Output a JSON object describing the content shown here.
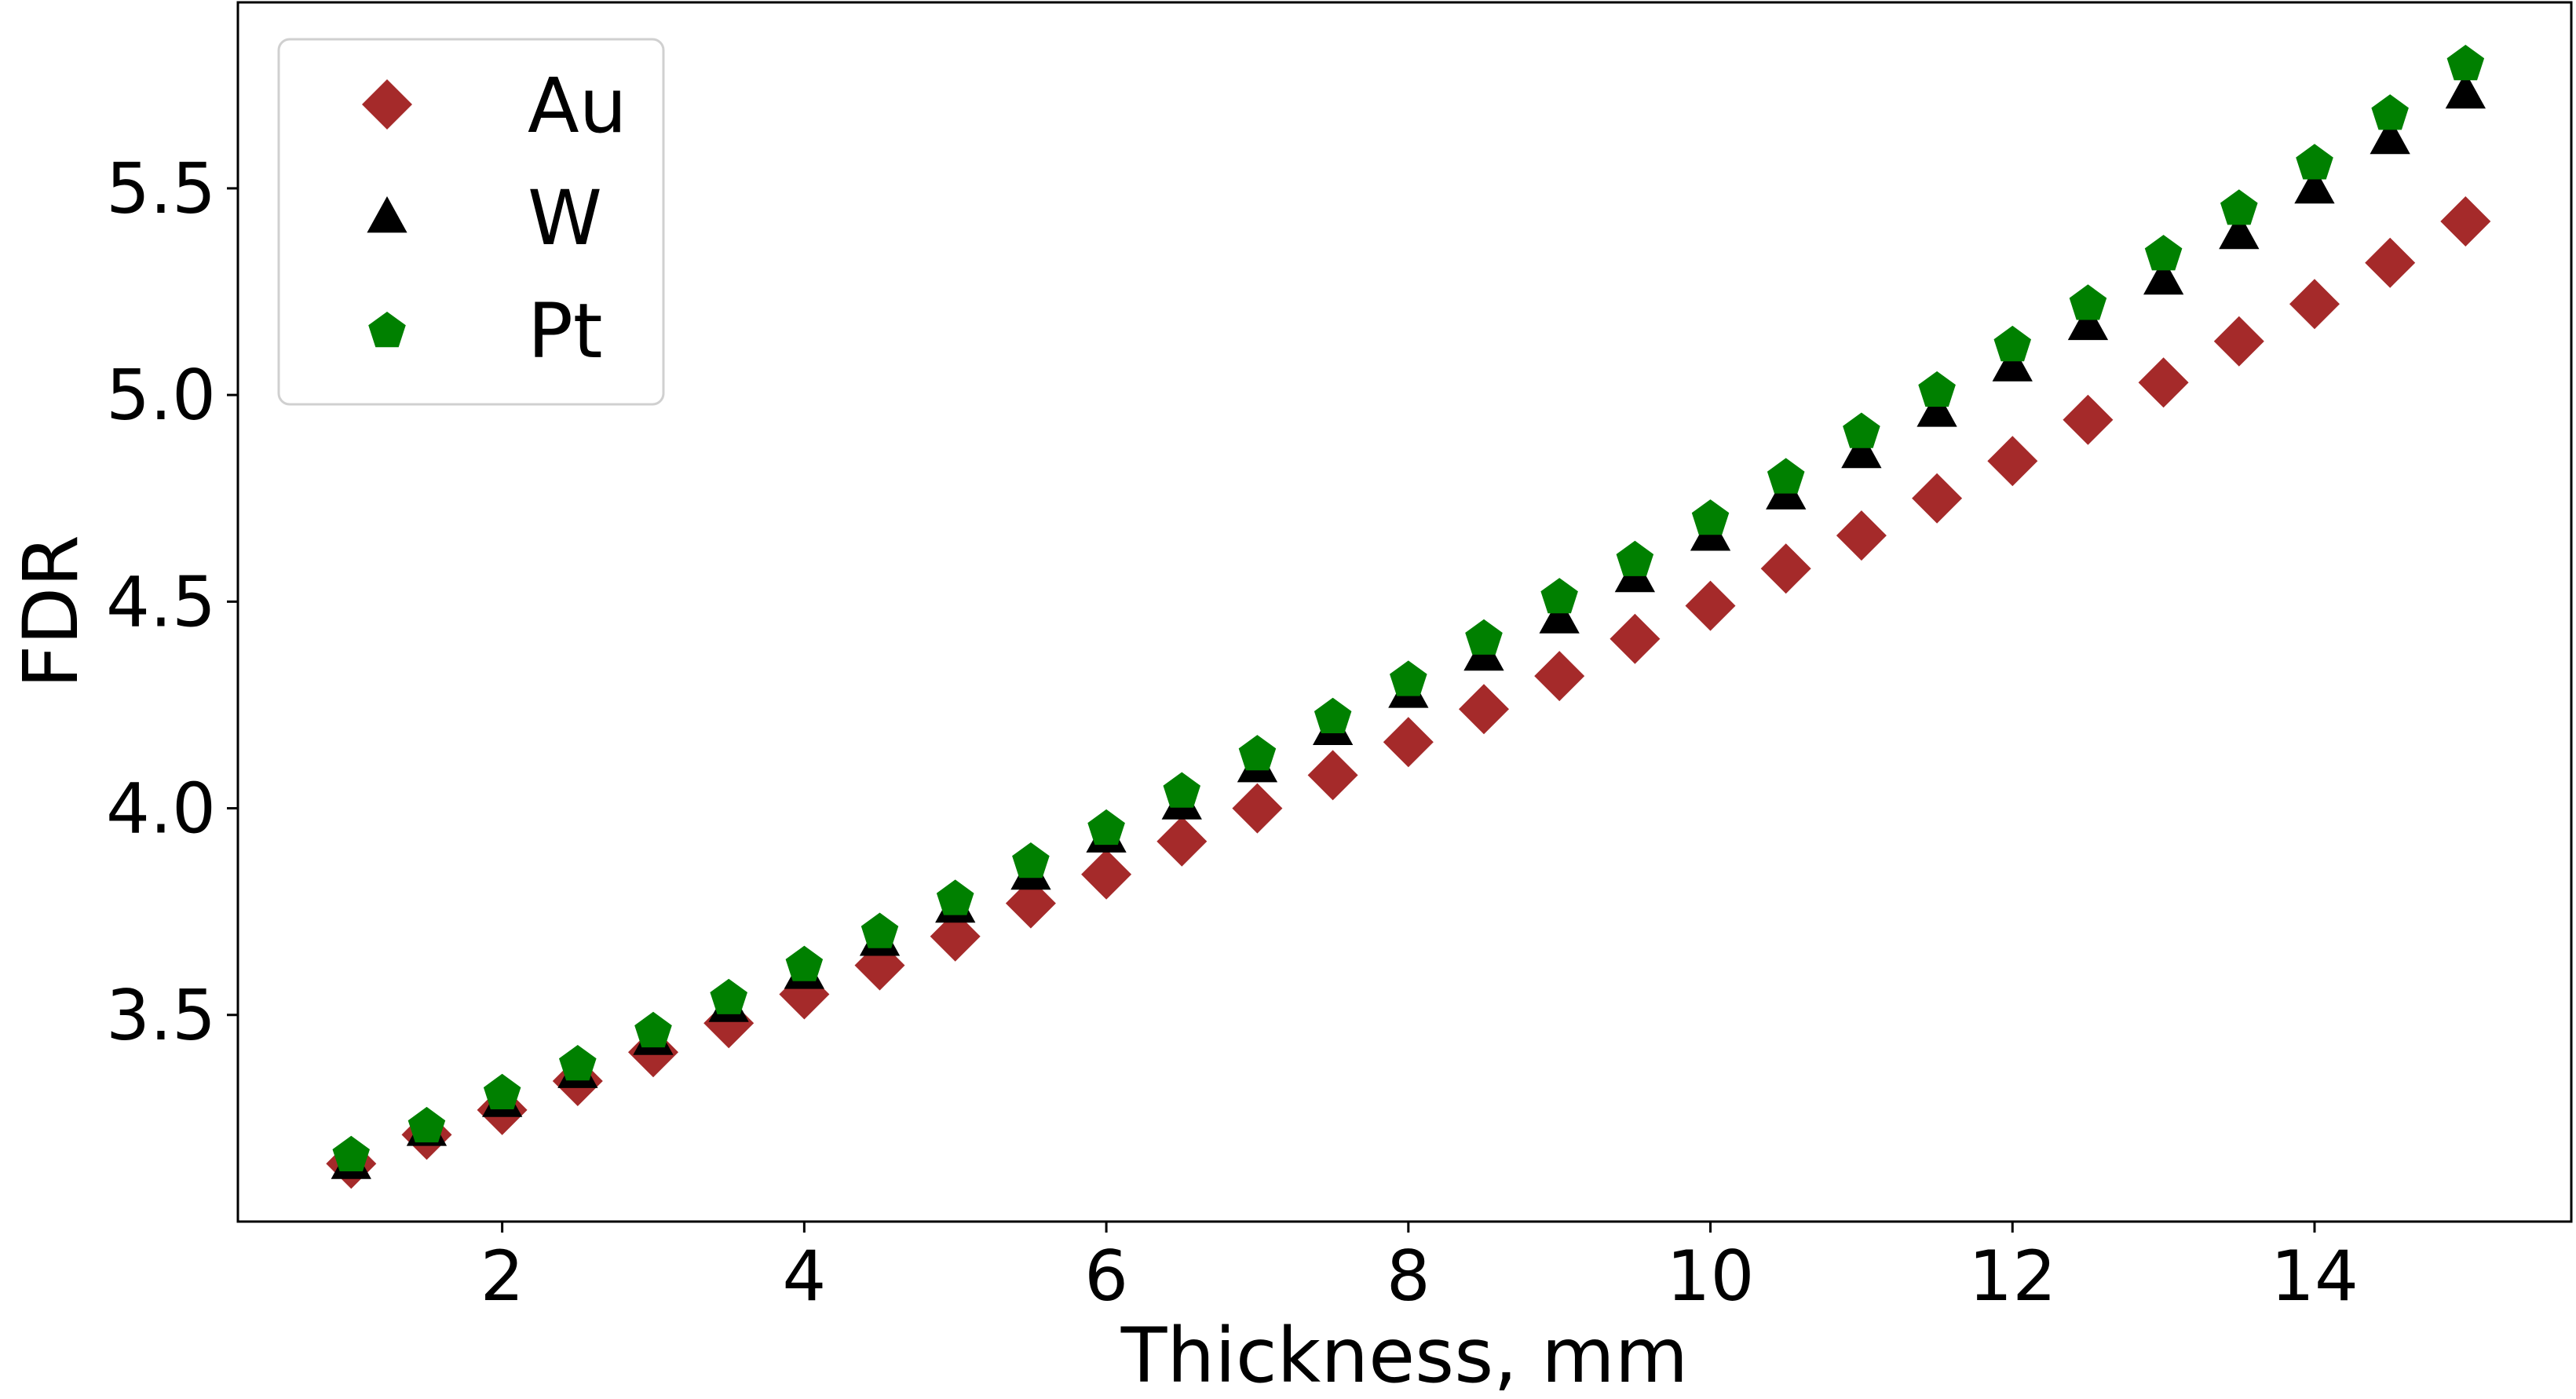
{
  "chart_data": {
    "type": "scatter",
    "title": "",
    "xlabel": "Thickness, mm",
    "ylabel": "FDR",
    "xlim": [
      0.25,
      15.7
    ],
    "ylim": [
      3.0,
      5.95
    ],
    "xticks": [
      2,
      4,
      6,
      8,
      10,
      12,
      14
    ],
    "yticks": [
      3.5,
      4.0,
      4.5,
      5.0,
      5.5
    ],
    "xtick_labels": [
      "2",
      "4",
      "6",
      "8",
      "10",
      "12",
      "14"
    ],
    "ytick_labels": [
      "3.5",
      "4.0",
      "4.5",
      "5.0",
      "5.5"
    ],
    "grid": false,
    "legend_position": "upper-left",
    "x": [
      1,
      1.5,
      2,
      2.5,
      3,
      3.5,
      4,
      4.5,
      5,
      5.5,
      6,
      6.5,
      7,
      7.5,
      8,
      8.5,
      9,
      9.5,
      10,
      10.5,
      11,
      11.5,
      12,
      12.5,
      13,
      13.5,
      14,
      14.5,
      15
    ],
    "series": [
      {
        "name": "Au",
        "marker": "diamond",
        "color": "#a52a2a",
        "values": [
          3.14,
          3.21,
          3.27,
          3.34,
          3.41,
          3.48,
          3.55,
          3.62,
          3.69,
          3.77,
          3.84,
          3.92,
          4.0,
          4.08,
          4.16,
          4.24,
          4.32,
          4.41,
          4.49,
          4.58,
          4.66,
          4.75,
          4.84,
          4.94,
          5.03,
          5.13,
          5.22,
          5.32,
          5.42
        ]
      },
      {
        "name": "W",
        "marker": "triangle",
        "color": "#000000",
        "values": [
          3.14,
          3.22,
          3.29,
          3.36,
          3.44,
          3.52,
          3.6,
          3.68,
          3.76,
          3.84,
          3.93,
          4.01,
          4.1,
          4.19,
          4.28,
          4.37,
          4.46,
          4.56,
          4.66,
          4.76,
          4.86,
          4.96,
          5.07,
          5.17,
          5.28,
          5.39,
          5.5,
          5.62,
          5.73
        ]
      },
      {
        "name": "Pt",
        "marker": "pentagon",
        "color": "#008000",
        "values": [
          3.16,
          3.23,
          3.31,
          3.38,
          3.46,
          3.54,
          3.62,
          3.7,
          3.78,
          3.87,
          3.95,
          4.04,
          4.13,
          4.22,
          4.31,
          4.41,
          4.51,
          4.6,
          4.7,
          4.8,
          4.91,
          5.01,
          5.12,
          5.22,
          5.34,
          5.45,
          5.56,
          5.68,
          5.8
        ]
      }
    ]
  }
}
